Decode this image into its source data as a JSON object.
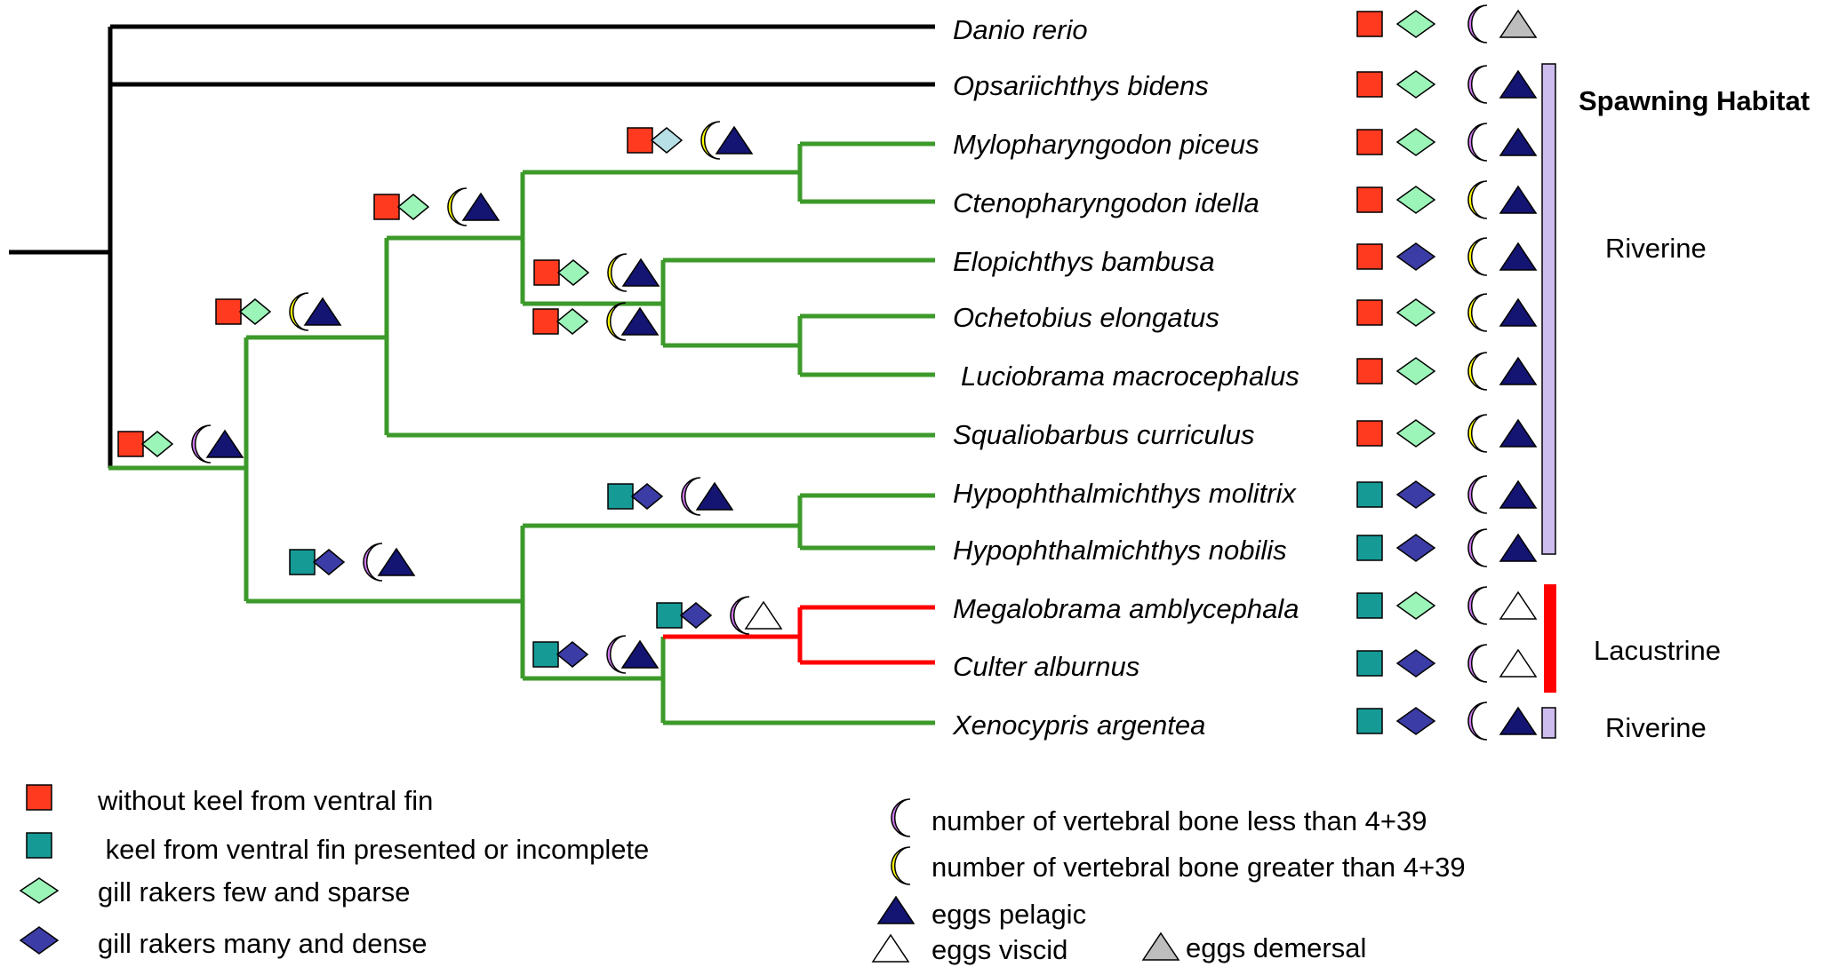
{
  "colors": {
    "square_red": "#ff3a1f",
    "square_teal": "#169a96",
    "diamond_light": "#9cf5b8",
    "diamond_light_blue": "#b7dfe6",
    "diamond_dark": "#3c3ca6",
    "crescent_purple": "#cf78f0",
    "crescent_yellow": "#ffff00",
    "triangle_navy": "#141472",
    "triangle_white": "#ffffff",
    "triangle_gray": "#bdbdbd",
    "branch_black": "#000000",
    "branch_green": "#3c9a2a",
    "branch_red": "#ff0000",
    "bar_riverine": "#cdbcee",
    "bar_lacustrine": "#ff0000"
  },
  "species": [
    "Danio rerio",
    "Opsariichthys bidens",
    "Mylopharyngodon piceus",
    "Ctenopharyngodon idella",
    "Elopichthys bambusa",
    "Ochetobius elongatus",
    "Luciobrama macrocephalus",
    "Squaliobarbus curriculus",
    "Hypophthalmichthys molitrix",
    "Hypophthalmichthys nobilis",
    "Megalobrama amblycephala",
    "Culter alburnus",
    "Xenocypris argentea"
  ],
  "habitat": {
    "title": "Spawning Habitat",
    "groups": [
      "Riverine",
      "Lacustrine",
      "Riverine"
    ]
  },
  "traits": {
    "tips": [
      [
        "red",
        "light",
        "purple",
        "gray"
      ],
      [
        "red",
        "light",
        "purple",
        "navy"
      ],
      [
        "red",
        "light",
        "purple",
        "navy"
      ],
      [
        "red",
        "light",
        "yellow",
        "navy"
      ],
      [
        "red",
        "dark",
        "yellow",
        "navy"
      ],
      [
        "red",
        "light",
        "yellow",
        "navy"
      ],
      [
        "red",
        "light",
        "yellow",
        "navy"
      ],
      [
        "red",
        "light",
        "yellow",
        "navy"
      ],
      [
        "teal",
        "dark",
        "purple",
        "navy"
      ],
      [
        "teal",
        "dark",
        "purple",
        "navy"
      ],
      [
        "teal",
        "light",
        "purple",
        "white"
      ],
      [
        "teal",
        "dark",
        "purple",
        "white"
      ],
      [
        "teal",
        "dark",
        "purple",
        "navy"
      ]
    ],
    "nodes": [
      [
        "red",
        "lightblue",
        "yellow",
        "navy"
      ],
      [
        "red",
        "light",
        "yellow",
        "navy"
      ],
      [
        "red",
        "light",
        "yellow",
        "navy"
      ],
      [
        "red",
        "light",
        "yellow",
        "navy"
      ],
      [
        "red",
        "light",
        "yellow",
        "navy"
      ],
      [
        "red",
        "light",
        "purple",
        "navy"
      ],
      [
        "teal",
        "dark",
        "purple",
        "navy"
      ],
      [
        "teal",
        "dark",
        "purple",
        "navy"
      ],
      [
        "teal",
        "dark",
        "purple",
        "white"
      ],
      [
        "teal",
        "dark",
        "purple",
        "navy"
      ]
    ]
  },
  "legend": {
    "left": [
      {
        "symbol": "red",
        "text": "without keel from ventral fin"
      },
      {
        "symbol": "teal",
        "text": " keel from ventral fin presented or incomplete"
      },
      {
        "symbol": "light",
        "text": "gill rakers few and sparse"
      },
      {
        "symbol": "dark",
        "text": "gill rakers many and dense"
      }
    ],
    "right": [
      {
        "symbol": "purple",
        "text": "number of vertebral bone less than 4+39"
      },
      {
        "symbol": "yellow",
        "text": "number of vertebral bone greater than 4+39"
      },
      {
        "symbol": "navy",
        "text": "eggs pelagic"
      },
      {
        "symbol": "white",
        "text": "eggs viscid"
      },
      {
        "symbol": "gray",
        "text": "eggs demersal"
      }
    ]
  }
}
